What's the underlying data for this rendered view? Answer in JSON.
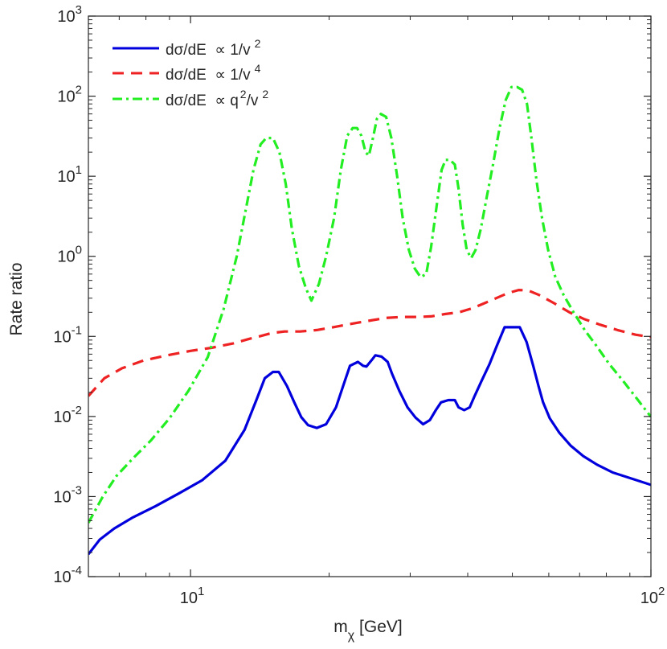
{
  "chart_data": {
    "type": "line",
    "xscale": "log",
    "yscale": "log",
    "xlim": [
      6,
      100
    ],
    "ylim": [
      0.0001,
      1000
    ],
    "xlabel": {
      "main": "m",
      "sub": "χ",
      "rest": " [GeV]"
    },
    "ylabel": "Rate ratio",
    "x_ticks": [
      {
        "value": 10,
        "base": "10",
        "exp": "1"
      },
      {
        "value": 100,
        "base": "10",
        "exp": "2"
      }
    ],
    "y_ticks": [
      {
        "value": 0.0001,
        "base": "10",
        "exp": "-4"
      },
      {
        "value": 0.001,
        "base": "10",
        "exp": "-3"
      },
      {
        "value": 0.01,
        "base": "10",
        "exp": "-2"
      },
      {
        "value": 0.1,
        "base": "10",
        "exp": "-1"
      },
      {
        "value": 1,
        "base": "10",
        "exp": "0"
      },
      {
        "value": 10,
        "base": "10",
        "exp": "1"
      },
      {
        "value": 100,
        "base": "10",
        "exp": "2"
      },
      {
        "value": 1000,
        "base": "10",
        "exp": "3"
      }
    ],
    "legend_position": "top-left",
    "series": [
      {
        "name": "dσ/dE ∝ 1/v²",
        "legend": {
          "text": "dσ/dE  ∝ 1/v",
          "sup": "2"
        },
        "color": "#0000dd",
        "style": "solid",
        "x": [
          6.0,
          6.35,
          6.83,
          7.5,
          8.4,
          9.45,
          10.6,
          11.9,
          13.1,
          13.9,
          14.5,
          15.1,
          15.55,
          16.2,
          16.8,
          17.4,
          18.0,
          18.8,
          19.7,
          20.7,
          21.6,
          22.2,
          23.1,
          23.7,
          24.1,
          24.7,
          25.2,
          26.0,
          26.8,
          27.4,
          28.4,
          29.6,
          30.8,
          32.0,
          33.1,
          34.1,
          35.0,
          36.3,
          37.5,
          38.2,
          39.3,
          40.4,
          41.4,
          42.9,
          44.6,
          46.3,
          48.1,
          50.2,
          51.9,
          53.7,
          55.5,
          57.0,
          58.3,
          60.3,
          63.2,
          67.0,
          71.3,
          76.4,
          82.6,
          90.1,
          100.0
        ],
        "values": [
          0.00019,
          0.00029,
          0.0004,
          0.00055,
          0.00076,
          0.0011,
          0.0016,
          0.0028,
          0.0068,
          0.016,
          0.03,
          0.036,
          0.036,
          0.024,
          0.015,
          0.0098,
          0.0078,
          0.0072,
          0.008,
          0.013,
          0.027,
          0.043,
          0.048,
          0.043,
          0.042,
          0.05,
          0.058,
          0.056,
          0.048,
          0.034,
          0.021,
          0.013,
          0.0097,
          0.008,
          0.009,
          0.012,
          0.015,
          0.016,
          0.016,
          0.013,
          0.012,
          0.013,
          0.018,
          0.028,
          0.045,
          0.077,
          0.13,
          0.13,
          0.13,
          0.085,
          0.043,
          0.024,
          0.015,
          0.0095,
          0.0063,
          0.0043,
          0.0032,
          0.0025,
          0.002,
          0.0017,
          0.0014
        ]
      },
      {
        "name": "dσ/dE ∝ 1/v⁴",
        "legend": {
          "text": "dσ/dE  ∝ 1/v",
          "sup": "4"
        },
        "color": "#ee2222",
        "style": "dashed",
        "x": [
          6.0,
          6.5,
          7.1,
          7.9,
          8.9,
          10.0,
          11.1,
          12.4,
          13.4,
          14.1,
          15.0,
          16.0,
          17.3,
          18.8,
          20.4,
          21.8,
          23.3,
          24.9,
          26.6,
          28.8,
          31.1,
          33.3,
          35.7,
          38.3,
          41.0,
          43.5,
          46.1,
          48.8,
          51.6,
          54.1,
          57.1,
          61.6,
          66.5,
          71.5,
          77.5,
          84.6,
          92.6,
          100.0
        ],
        "values": [
          0.018,
          0.03,
          0.04,
          0.05,
          0.058,
          0.066,
          0.072,
          0.082,
          0.093,
          0.1,
          0.11,
          0.115,
          0.115,
          0.12,
          0.13,
          0.14,
          0.15,
          0.16,
          0.17,
          0.175,
          0.175,
          0.178,
          0.19,
          0.2,
          0.225,
          0.26,
          0.3,
          0.345,
          0.38,
          0.375,
          0.33,
          0.26,
          0.2,
          0.165,
          0.14,
          0.12,
          0.105,
          0.098
        ]
      },
      {
        "name": "dσ/dE ∝ q²/v²",
        "legend": {
          "text": "dσ/dE  ∝ q",
          "sup1": "2",
          "text2": "/v",
          "sup2": "2"
        },
        "color": "#22ee22",
        "style": "dashdot",
        "x": [
          6.0,
          6.45,
          6.9,
          7.5,
          8.2,
          9.0,
          9.9,
          10.9,
          11.8,
          12.6,
          13.2,
          13.7,
          14.2,
          14.6,
          15.1,
          15.6,
          16.1,
          16.6,
          17.2,
          17.8,
          18.3,
          19.0,
          19.7,
          20.5,
          21.2,
          21.9,
          22.5,
          23.0,
          23.5,
          24.0,
          24.4,
          24.9,
          25.4,
          25.9,
          26.6,
          27.3,
          28.1,
          28.9,
          29.8,
          30.7,
          31.6,
          32.5,
          33.3,
          34.2,
          35.1,
          35.8,
          36.6,
          37.5,
          38.2,
          39.0,
          39.8,
          40.7,
          41.6,
          42.7,
          44.0,
          45.4,
          46.9,
          48.4,
          49.8,
          51.2,
          52.5,
          53.8,
          55.0,
          56.4,
          58.0,
          59.8,
          62.0,
          64.6,
          67.9,
          71.8,
          76.3,
          81.2,
          86.9,
          93.0,
          100.0
        ],
        "values": [
          0.00047,
          0.001,
          0.0018,
          0.003,
          0.005,
          0.0095,
          0.021,
          0.055,
          0.22,
          1.0,
          4.0,
          12,
          25,
          30,
          30,
          20,
          8.0,
          2.2,
          0.75,
          0.4,
          0.28,
          0.45,
          1.0,
          3.0,
          12,
          32,
          40,
          40,
          32,
          20,
          18,
          30,
          52,
          60,
          55,
          30,
          10,
          3.0,
          1.2,
          0.7,
          0.55,
          0.6,
          1.3,
          4.0,
          12,
          16,
          16,
          14,
          7.0,
          2.5,
          1.2,
          0.95,
          1.2,
          2.2,
          5.5,
          14,
          40,
          90,
          130,
          130,
          120,
          80,
          30,
          9.0,
          3.0,
          1.2,
          0.55,
          0.33,
          0.2,
          0.12,
          0.075,
          0.045,
          0.028,
          0.017,
          0.0099
        ]
      }
    ]
  }
}
